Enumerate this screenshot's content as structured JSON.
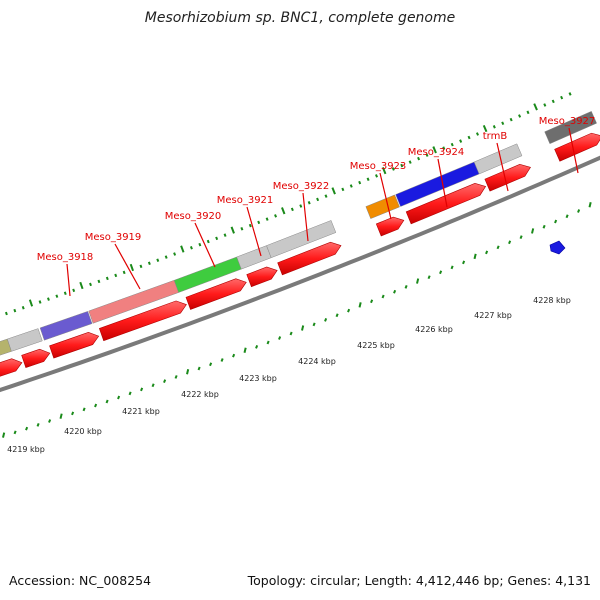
{
  "title": "Mesorhizobium sp. BNC1, complete genome",
  "footer": {
    "accession": "Accession: NC_008254",
    "topology": "Topology: circular; Length: 4,412,446 bp; Genes: 4,131"
  },
  "colors": {
    "gene_label": "#e00000",
    "tick": "#1a8a1a",
    "backbone": "#7a7a7a",
    "cds": "#ff1a1a"
  },
  "gene_labels": [
    "Meso_3918",
    "Meso_3919",
    "Meso_3920",
    "Meso_3921",
    "Meso_3922",
    "Meso_3923",
    "Meso_3924",
    "trmB",
    "Meso_3927"
  ],
  "kbp_labels": [
    "4219 kbp",
    "4220 kbp",
    "4221 kbp",
    "4222 kbp",
    "4223 kbp",
    "4224 kbp",
    "4225 kbp",
    "4226 kbp",
    "4227 kbp",
    "4228 kbp"
  ]
}
